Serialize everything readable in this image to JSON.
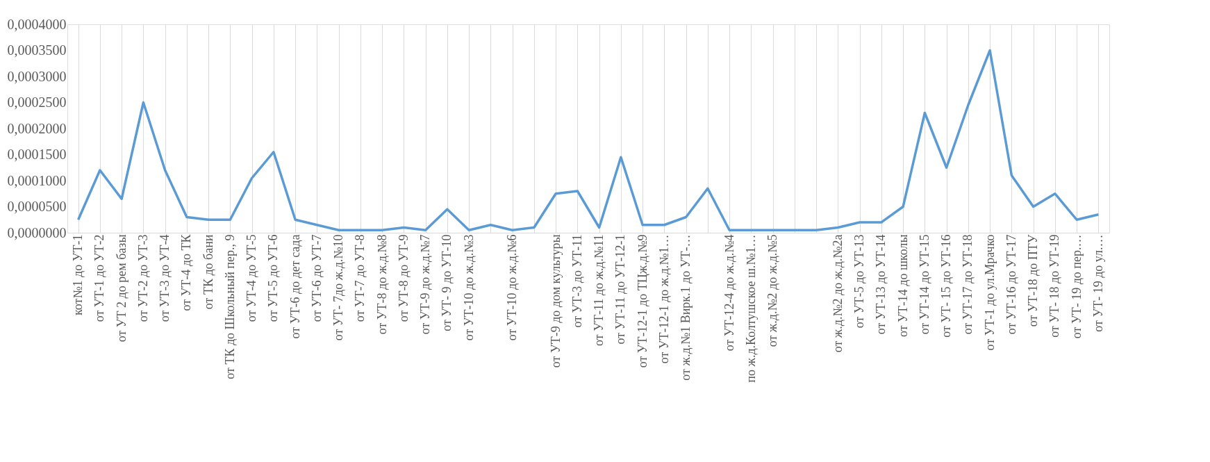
{
  "chart_data": {
    "type": "line",
    "categories": [
      "кот№1 до УТ-1",
      "от УТ-1 до УТ-2",
      "от УТ 2 до рем базы",
      "от УТ-2 до УТ-3",
      "от УТ-3 до УТ-4",
      "от УТ-4 до ТК",
      "от ТК до бани",
      "от ТК до Школьный пер., 9",
      "от УТ-4 до УТ-5",
      "от УТ-5 до УТ-6",
      "от УТ-6 до дет сада",
      "от УТ-6 до УТ-7",
      "от УТ- 7до ж.д.№10",
      "от УТ-7 до УТ-8",
      "от УТ-8 до ж.д.№8",
      "от УТ-8 до УТ-9",
      "от УТ-9 до ж.д.№7",
      "от УТ- 9 до УТ-10",
      "от УТ-10 до ж.д.№3",
      null,
      "от УТ-10 до ж.д.№6",
      null,
      "от УТ-9 до  дом культуры",
      "от УТ-3 до УТ-11",
      "от УТ-11 до ж.д.№11",
      "от УТ-11 до УТ-12-1",
      "от УТ-12-1 до ТЦж.д.№9",
      "от УТ-12-1 до ж.д.№1…",
      "от ж.д.№1 Вирк.1 до УТ-…",
      null,
      "от УТ-12-4 до ж.д.№4",
      "по ж.д.Колтушское ш.№1…",
      "от ж.д.№2 до ж.д.№5",
      null,
      null,
      "от ж.д.№2 до ж.д.№2а",
      "от УТ-5 до УТ-13",
      "от УТ-13 до УТ-14",
      "от УТ-14 до школы",
      "от УТ-14 до УТ-15",
      "от УТ- 15 до УТ-16",
      "от УТ-17 до УТ-18",
      "от УТ-1 до ул.Мрачко",
      "от УТ-16 до УТ-17",
      "от УТ-18 до ПТУ",
      "от УТ- 18 до УТ-19",
      "от УТ- 19 до пер.…",
      "от УТ- 19 до ул.…"
    ],
    "series": [
      {
        "color": "#5b9bd5",
        "values": [
          2.5e-05,
          0.00012,
          6.5e-05,
          0.00025,
          0.00012,
          3e-05,
          2.5e-05,
          2.5e-05,
          0.000105,
          0.000155,
          2.5e-05,
          1.5e-05,
          5e-06,
          5e-06,
          5e-06,
          1e-05,
          5e-06,
          4.5e-05,
          5e-06,
          1.5e-05,
          5e-06,
          1e-05,
          7.5e-05,
          8e-05,
          1e-05,
          0.000145,
          1.5e-05,
          1.5e-05,
          3e-05,
          8.5e-05,
          5e-06,
          5e-06,
          5e-06,
          5e-06,
          5e-06,
          1e-05,
          2e-05,
          2e-05,
          5e-05,
          0.00023,
          0.000125,
          0.000245,
          0.00035,
          0.00011,
          5e-05,
          7.5e-05,
          2.5e-05,
          3.5e-05
        ]
      }
    ],
    "ylim": [
      0,
      0.0004
    ],
    "yticks": [
      {
        "value": 0,
        "label": "0,0000000"
      },
      {
        "value": 5e-05,
        "label": "0,0000500"
      },
      {
        "value": 0.0001,
        "label": "0,0001000"
      },
      {
        "value": 0.00015,
        "label": "0,0001500"
      },
      {
        "value": 0.0002,
        "label": "0,0002000"
      },
      {
        "value": 0.00025,
        "label": "0,0002500"
      },
      {
        "value": 0.0003,
        "label": "0,0003000"
      },
      {
        "value": 0.00035,
        "label": "0,0003500"
      },
      {
        "value": 0.0004,
        "label": "0,0004000"
      }
    ],
    "grid": "x",
    "marker": "none",
    "line_style": "solid"
  }
}
